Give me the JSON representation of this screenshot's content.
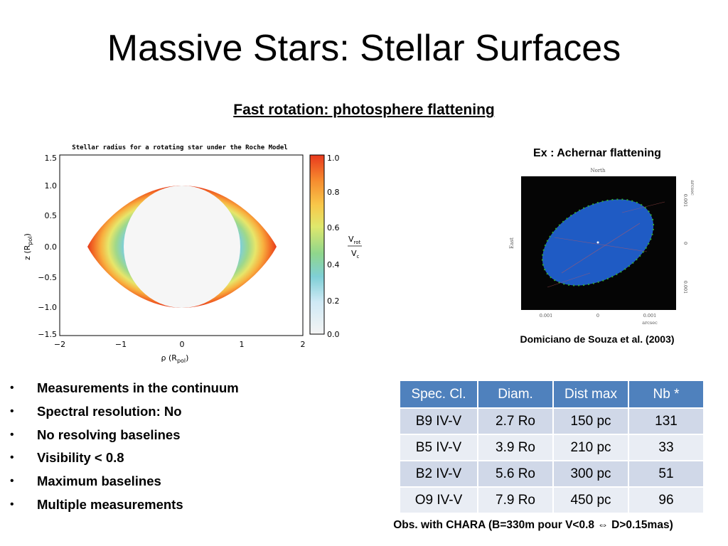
{
  "slide": {
    "title": "Massive Stars: Stellar Surfaces",
    "subtitle": "Fast rotation: photosphere flattening"
  },
  "plot": {
    "title": "Stellar radius for a rotating star under the Roche Model",
    "y_ticks": [
      "1.5",
      "1.0",
      "0.5",
      "0.0",
      "−0.5",
      "−1.0",
      "−1.5"
    ],
    "x_ticks": [
      "−2",
      "−1",
      "0",
      "1",
      "2"
    ],
    "y_label": "z  (R",
    "y_label_sub": "pol",
    "x_label": "ρ  (R",
    "x_label_sub": "pol",
    "colorbar_ticks": [
      "1.0",
      "0.8",
      "0.6",
      "0.4",
      "0.2",
      "0.0"
    ],
    "colorbar_label_top": "V",
    "colorbar_label_top_sub": "rot",
    "colorbar_label_bottom": "V",
    "colorbar_label_bottom_sub": "c"
  },
  "achernar": {
    "caption": "Ex : Achernar flattening",
    "north": "North",
    "east": "East",
    "x_ticks": [
      "0.001",
      "0",
      "0.001"
    ],
    "x_unit": "arcsec",
    "y_ticks": [
      "0.001",
      "0",
      "0.001"
    ],
    "y_unit": "arcsec",
    "citation": "Domiciano de Souza et al. (2003)"
  },
  "bullets": [
    "Measurements in the continuum",
    "Spectral resolution: No",
    "No resolving baselines",
    "Visibility < 0.8",
    "Maximum baselines",
    "Multiple measurements"
  ],
  "table": {
    "headers": [
      "Spec. Cl.",
      "Diam.",
      "Dist max",
      "Nb *"
    ],
    "rows": [
      [
        "B9 IV-V",
        "2.7 Ro",
        "150 pc",
        "131"
      ],
      [
        "B5 IV-V",
        "3.9 Ro",
        "210 pc",
        "33"
      ],
      [
        "B2 IV-V",
        "5.6 Ro",
        "300 pc",
        "51"
      ],
      [
        "O9 IV-V",
        "7.9 Ro",
        "450 pc",
        "96"
      ]
    ]
  },
  "footnote": "Obs. with CHARA (B=330m pour V<0.8 ⇔ D>0.15mas)",
  "colors": {
    "table_header": "#4f81bd",
    "table_row_odd": "#d0d8e8",
    "table_row_even": "#e9edf4",
    "achernar_disk": "#1f5bc4"
  }
}
